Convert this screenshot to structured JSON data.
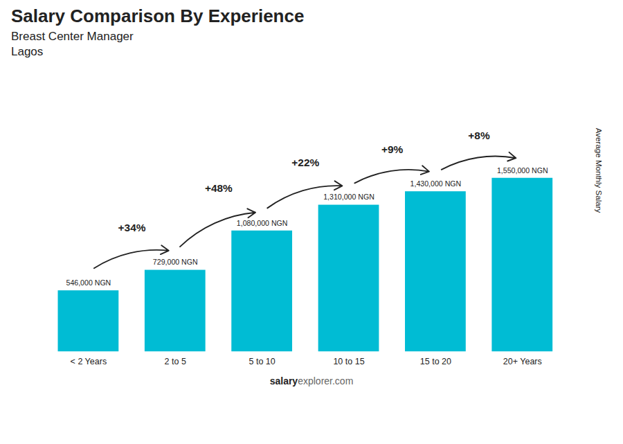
{
  "chart_data": {
    "type": "bar",
    "title": "Salary Comparison By Experience",
    "subtitle": "Breast Center Manager",
    "annotations": [
      "Lagos",
      "salary",
      "explorer.com"
    ],
    "ylabel": "Average Monthly Salary",
    "categories": [
      "< 2 Years",
      "2 to 5",
      "5 to 10",
      "10 to 15",
      "15 to 20",
      "20+ Years"
    ],
    "values": [
      546000,
      729000,
      1080000,
      1310000,
      1430000,
      1550000
    ],
    "value_labels": [
      "546,000 NGN",
      "729,000 NGN",
      "1,080,000 NGN",
      "1,310,000 NGN",
      "1,430,000 NGN",
      "1,550,000 NGN"
    ],
    "data_labels": true,
    "pct_changes": [
      null,
      "+34%",
      "+48%",
      "+22%",
      "+9%",
      "+8%"
    ],
    "color": "#00bcd4",
    "ylim": [
      0,
      2480000
    ],
    "yticks": [],
    "tick_labels": "x",
    "grid": false
  }
}
